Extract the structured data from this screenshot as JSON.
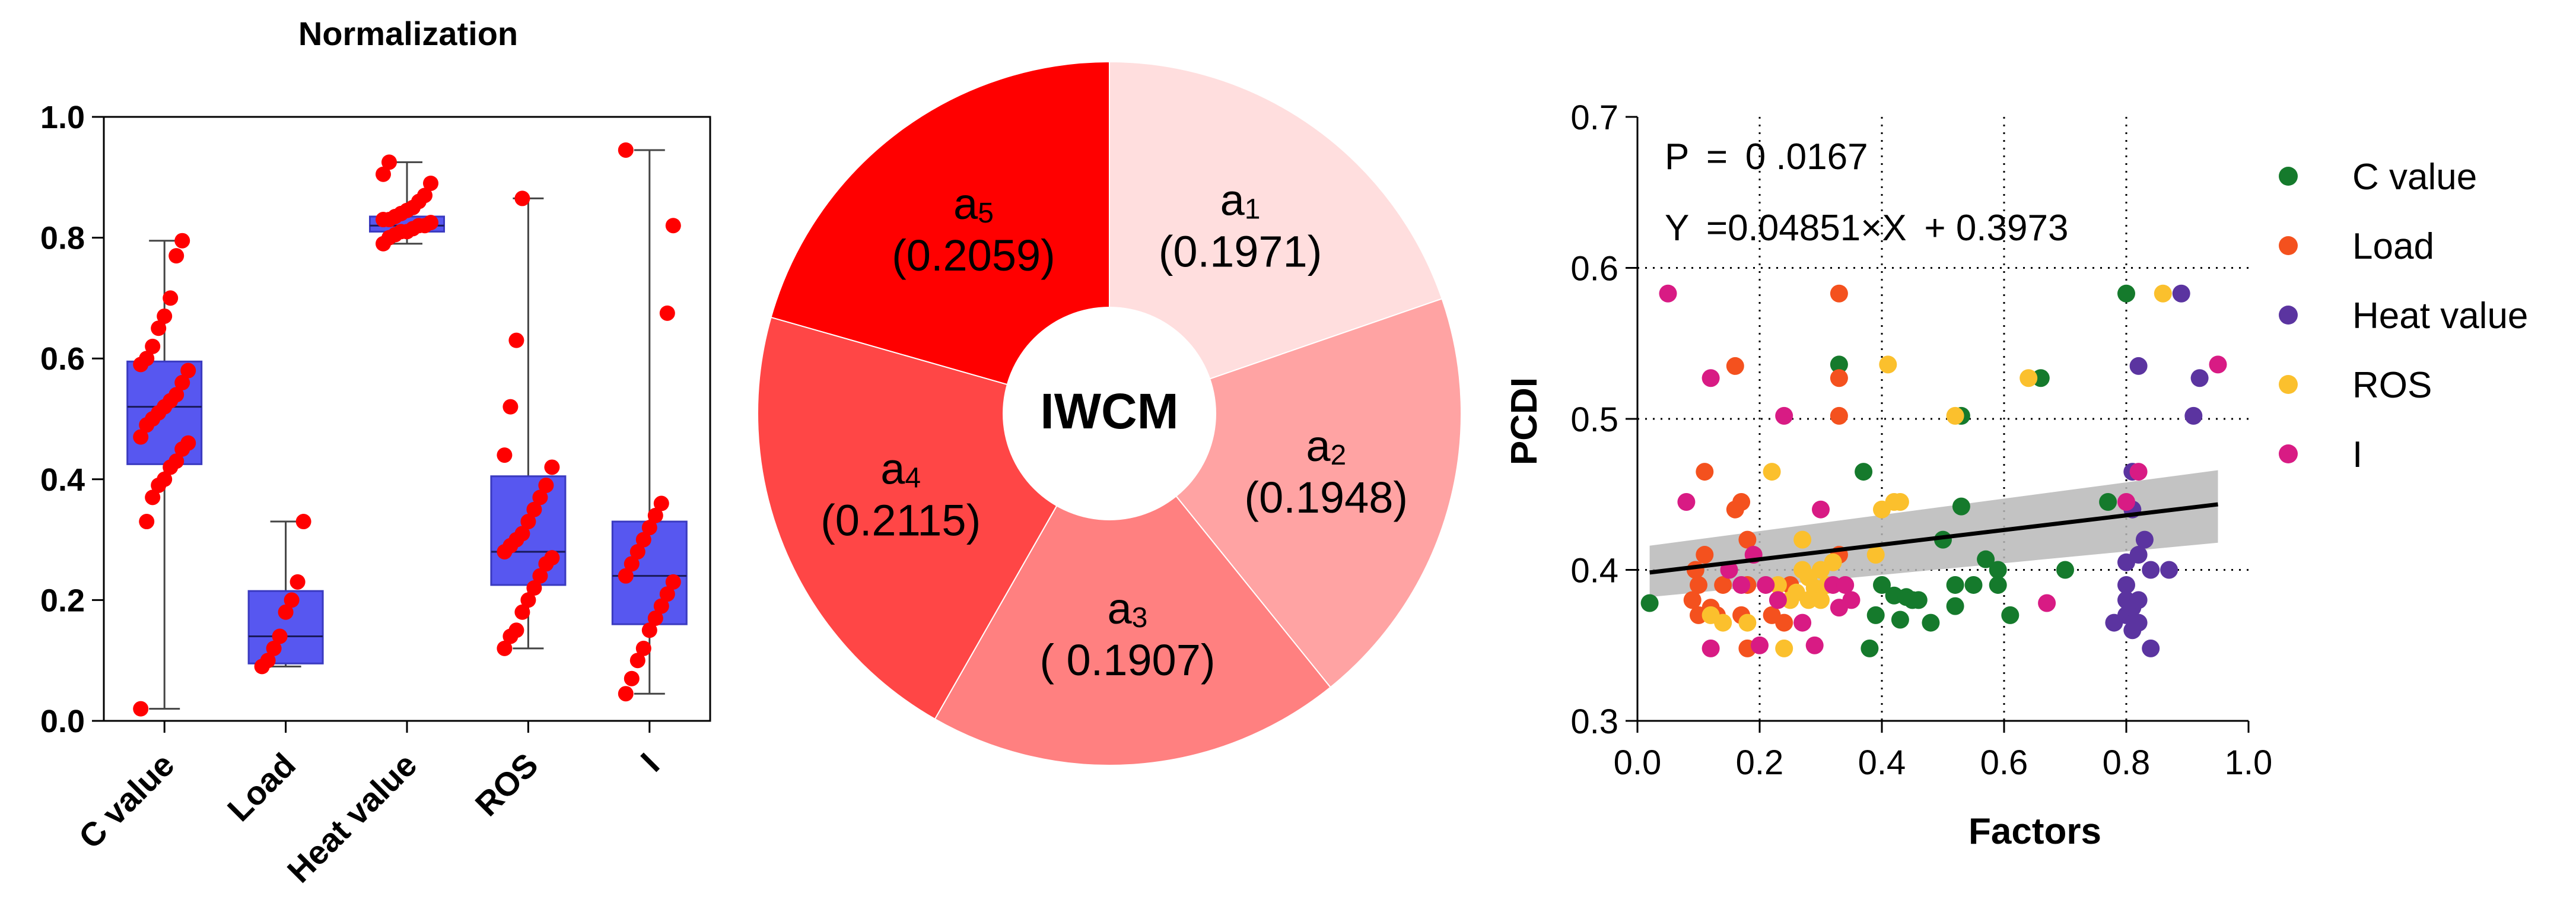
{
  "colors": {
    "box_fill": "#5757f0",
    "box_stroke": "#3a3ac0",
    "point": "#ff0000",
    "axis": "#000000",
    "green": "#157a2c",
    "orange": "#f4511e",
    "purple": "#5b34a0",
    "yellow": "#fbc02d",
    "magenta": "#d81b84",
    "band": "#b8b8b8",
    "pie": [
      "#ffdede",
      "#ffa3a3",
      "#ff8080",
      "#ff4646",
      "#ff0000"
    ]
  },
  "chart_data": [
    {
      "type": "box",
      "title": "Normalization",
      "xlabel": "",
      "ylabel": "",
      "ylim": [
        0,
        1
      ],
      "yticks": [
        "0.0",
        "0.2",
        "0.4",
        "0.6",
        "0.8",
        "1.0"
      ],
      "categories": [
        "C value",
        "Load",
        "Heat value",
        "ROS",
        "I"
      ],
      "boxes": [
        {
          "min": 0.02,
          "q1": 0.425,
          "median": 0.52,
          "q3": 0.595,
          "max": 0.795,
          "points": [
            0.02,
            0.33,
            0.37,
            0.39,
            0.4,
            0.42,
            0.43,
            0.45,
            0.46,
            0.47,
            0.49,
            0.5,
            0.51,
            0.52,
            0.53,
            0.54,
            0.56,
            0.58,
            0.59,
            0.6,
            0.62,
            0.65,
            0.67,
            0.7,
            0.77,
            0.795
          ]
        },
        {
          "min": 0.09,
          "q1": 0.095,
          "median": 0.14,
          "q3": 0.215,
          "max": 0.33,
          "points": [
            0.09,
            0.1,
            0.12,
            0.14,
            0.18,
            0.2,
            0.23,
            0.33
          ]
        },
        {
          "min": 0.79,
          "q1": 0.81,
          "median": 0.82,
          "q3": 0.835,
          "max": 0.925,
          "points": [
            0.79,
            0.8,
            0.805,
            0.81,
            0.81,
            0.815,
            0.82,
            0.82,
            0.825,
            0.83,
            0.83,
            0.835,
            0.84,
            0.845,
            0.85,
            0.86,
            0.87,
            0.89,
            0.905,
            0.925
          ]
        },
        {
          "min": 0.12,
          "q1": 0.225,
          "median": 0.28,
          "q3": 0.405,
          "max": 0.865,
          "points": [
            0.12,
            0.14,
            0.15,
            0.18,
            0.2,
            0.22,
            0.24,
            0.26,
            0.27,
            0.28,
            0.29,
            0.3,
            0.31,
            0.33,
            0.35,
            0.37,
            0.39,
            0.42,
            0.44,
            0.52,
            0.63,
            0.865
          ]
        },
        {
          "min": 0.045,
          "q1": 0.16,
          "median": 0.24,
          "q3": 0.33,
          "max": 0.945,
          "points": [
            0.045,
            0.07,
            0.1,
            0.12,
            0.15,
            0.17,
            0.19,
            0.21,
            0.23,
            0.24,
            0.26,
            0.28,
            0.3,
            0.32,
            0.34,
            0.36,
            0.675,
            0.82,
            0.945
          ]
        }
      ]
    },
    {
      "type": "pie",
      "title": "",
      "center_label": "IWCM",
      "slices": [
        {
          "sym": "a",
          "sub": "1",
          "value": 0.1971,
          "label": "(0.1971)"
        },
        {
          "sym": "a",
          "sub": "2",
          "value": 0.1948,
          "label": "(0.1948)"
        },
        {
          "sym": "a",
          "sub": "3",
          "value": 0.1907,
          "label": "( 0.1907)"
        },
        {
          "sym": "a",
          "sub": "4",
          "value": 0.2115,
          "label": "(0.2115)"
        },
        {
          "sym": "a",
          "sub": "5",
          "value": 0.2059,
          "label": "(0.2059)"
        }
      ]
    },
    {
      "type": "scatter",
      "title": "",
      "xlabel": "Factors",
      "ylabel": "PCDI",
      "xlim": [
        0,
        1
      ],
      "ylim": [
        0.3,
        0.7
      ],
      "xticks": [
        "0.0",
        "0.2",
        "0.4",
        "0.6",
        "0.8",
        "1.0"
      ],
      "yticks": [
        "0.3",
        "0.4",
        "0.5",
        "0.6",
        "0.7"
      ],
      "grid": "dotted",
      "annotations": [
        "P  =  0 .0167",
        "Y  =0.04851×X  + 0.3973"
      ],
      "fit": {
        "slope": 0.04851,
        "intercept": 0.3973,
        "x_range": [
          0.02,
          0.95
        ],
        "band_lo": [
          0.382,
          0.418
        ],
        "band_hi": [
          0.416,
          0.466
        ]
      },
      "legend": [
        "C value",
        "Load",
        "Heat value",
        "ROS",
        "I"
      ],
      "series": [
        {
          "name": "C value",
          "color_key": "green",
          "points": [
            [
              0.02,
              0.378
            ],
            [
              0.33,
              0.536
            ],
            [
              0.37,
              0.465
            ],
            [
              0.38,
              0.348
            ],
            [
              0.39,
              0.37
            ],
            [
              0.4,
              0.39
            ],
            [
              0.42,
              0.383
            ],
            [
              0.43,
              0.367
            ],
            [
              0.44,
              0.382
            ],
            [
              0.45,
              0.38
            ],
            [
              0.46,
              0.38
            ],
            [
              0.48,
              0.365
            ],
            [
              0.5,
              0.42
            ],
            [
              0.52,
              0.376
            ],
            [
              0.52,
              0.39
            ],
            [
              0.53,
              0.442
            ],
            [
              0.53,
              0.502
            ],
            [
              0.55,
              0.39
            ],
            [
              0.57,
              0.407
            ],
            [
              0.59,
              0.39
            ],
            [
              0.59,
              0.4
            ],
            [
              0.61,
              0.37
            ],
            [
              0.66,
              0.527
            ],
            [
              0.7,
              0.4
            ],
            [
              0.77,
              0.445
            ],
            [
              0.8,
              0.583
            ]
          ]
        },
        {
          "name": "Load",
          "color_key": "orange",
          "points": [
            [
              0.09,
              0.38
            ],
            [
              0.095,
              0.4
            ],
            [
              0.1,
              0.37
            ],
            [
              0.1,
              0.39
            ],
            [
              0.11,
              0.41
            ],
            [
              0.11,
              0.465
            ],
            [
              0.12,
              0.375
            ],
            [
              0.13,
              0.37
            ],
            [
              0.14,
              0.39
            ],
            [
              0.16,
              0.44
            ],
            [
              0.16,
              0.535
            ],
            [
              0.17,
              0.445
            ],
            [
              0.17,
              0.37
            ],
            [
              0.18,
              0.42
            ],
            [
              0.18,
              0.39
            ],
            [
              0.18,
              0.348
            ],
            [
              0.22,
              0.37
            ],
            [
              0.24,
              0.365
            ],
            [
              0.25,
              0.39
            ],
            [
              0.33,
              0.583
            ],
            [
              0.33,
              0.527
            ],
            [
              0.33,
              0.502
            ],
            [
              0.33,
              0.41
            ]
          ]
        },
        {
          "name": "Heat value",
          "color_key": "purple",
          "points": [
            [
              0.8,
              0.405
            ],
            [
              0.8,
              0.39
            ],
            [
              0.8,
              0.38
            ],
            [
              0.8,
              0.37
            ],
            [
              0.81,
              0.375
            ],
            [
              0.81,
              0.36
            ],
            [
              0.81,
              0.44
            ],
            [
              0.81,
              0.465
            ],
            [
              0.82,
              0.41
            ],
            [
              0.82,
              0.38
            ],
            [
              0.82,
              0.365
            ],
            [
              0.82,
              0.535
            ],
            [
              0.83,
              0.42
            ],
            [
              0.84,
              0.4
            ],
            [
              0.84,
              0.348
            ],
            [
              0.87,
              0.4
            ],
            [
              0.89,
              0.583
            ],
            [
              0.91,
              0.502
            ],
            [
              0.92,
              0.527
            ],
            [
              0.78,
              0.365
            ]
          ]
        },
        {
          "name": "ROS",
          "color_key": "yellow",
          "points": [
            [
              0.12,
              0.37
            ],
            [
              0.14,
              0.365
            ],
            [
              0.18,
              0.365
            ],
            [
              0.22,
              0.465
            ],
            [
              0.23,
              0.39
            ],
            [
              0.24,
              0.348
            ],
            [
              0.25,
              0.38
            ],
            [
              0.26,
              0.385
            ],
            [
              0.27,
              0.4
            ],
            [
              0.27,
              0.42
            ],
            [
              0.28,
              0.38
            ],
            [
              0.28,
              0.395
            ],
            [
              0.29,
              0.388
            ],
            [
              0.3,
              0.38
            ],
            [
              0.3,
              0.4
            ],
            [
              0.31,
              0.39
            ],
            [
              0.32,
              0.405
            ],
            [
              0.39,
              0.41
            ],
            [
              0.4,
              0.44
            ],
            [
              0.41,
              0.536
            ],
            [
              0.42,
              0.445
            ],
            [
              0.43,
              0.445
            ],
            [
              0.52,
              0.502
            ],
            [
              0.64,
              0.527
            ],
            [
              0.86,
              0.583
            ]
          ]
        },
        {
          "name": "I",
          "color_key": "magenta",
          "points": [
            [
              0.05,
              0.583
            ],
            [
              0.08,
              0.445
            ],
            [
              0.12,
              0.527
            ],
            [
              0.12,
              0.348
            ],
            [
              0.15,
              0.4
            ],
            [
              0.17,
              0.39
            ],
            [
              0.19,
              0.41
            ],
            [
              0.2,
              0.35
            ],
            [
              0.21,
              0.39
            ],
            [
              0.23,
              0.38
            ],
            [
              0.24,
              0.502
            ],
            [
              0.27,
              0.365
            ],
            [
              0.29,
              0.35
            ],
            [
              0.3,
              0.44
            ],
            [
              0.32,
              0.39
            ],
            [
              0.33,
              0.375
            ],
            [
              0.34,
              0.39
            ],
            [
              0.35,
              0.38
            ],
            [
              0.67,
              0.378
            ],
            [
              0.8,
              0.445
            ],
            [
              0.82,
              0.465
            ],
            [
              0.95,
              0.536
            ]
          ]
        }
      ]
    }
  ]
}
